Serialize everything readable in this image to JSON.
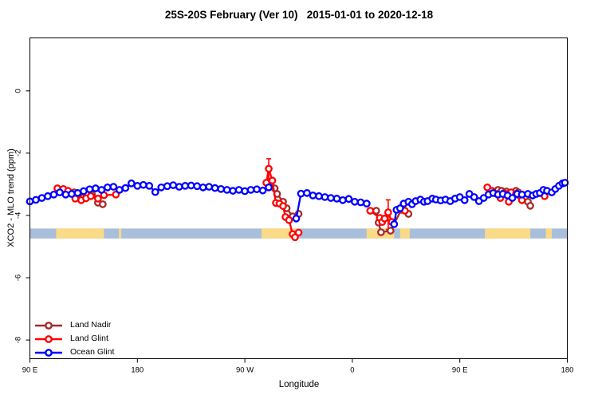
{
  "title": "25S-20S February (Ver 10)   2015-01-01 to 2020-12-18",
  "legend": {
    "items": [
      {
        "label": "Land Nadir",
        "color": "#a52a2a"
      },
      {
        "label": "Land Glint",
        "color": "#ff0000"
      },
      {
        "label": "Ocean Glint",
        "color": "#0000ff"
      }
    ]
  },
  "chart_data": {
    "type": "line",
    "title": "25S-20S February (Ver 10)   2015-01-01 to 2020-12-18",
    "xlabel": "Longitude",
    "ylabel": "XCO2 - MLO trend (ppm)",
    "xlim": [
      90,
      540
    ],
    "ylim": [
      -8.6,
      1.7
    ],
    "grid": false,
    "legend_position": "bottom-left",
    "x_axis_note": "longitude wraps eastward: 90E -> 180 -> 90W -> 0 -> 90E -> 180",
    "x_ticks": [
      {
        "pos": 90,
        "label": "90 E"
      },
      {
        "pos": 180,
        "label": "180"
      },
      {
        "pos": 270,
        "label": "90 W"
      },
      {
        "pos": 360,
        "label": "0"
      },
      {
        "pos": 450,
        "label": "90 E"
      },
      {
        "pos": 540,
        "label": "180"
      }
    ],
    "y_ticks": [
      {
        "pos": 0,
        "label": "0"
      },
      {
        "pos": -2,
        "label": "-2"
      },
      {
        "pos": -4,
        "label": "-4"
      },
      {
        "pos": -6,
        "label": "-6"
      },
      {
        "pos": -8,
        "label": "-8"
      }
    ],
    "map_band": {
      "y_range": [
        -4.74,
        -4.42
      ],
      "ocean_color": "#a9bedb",
      "land_color": "#fada87",
      "land_segments_lon": [
        [
          112,
          152
        ],
        [
          164.5,
          166.5
        ],
        [
          284,
          313
        ],
        [
          372,
          395
        ],
        [
          400,
          408
        ],
        [
          471,
          509
        ],
        [
          522,
          527
        ]
      ]
    },
    "marker": {
      "shape": "open-circle",
      "radius": 3.7,
      "fill": "#ffffff"
    },
    "series": [
      {
        "name": "Land Nadir",
        "color": "#a52a2a",
        "points": [
          [
            127,
            -3.26
          ],
          [
            131,
            -3.31
          ],
          [
            137,
            -3.31
          ],
          [
            142,
            -3.33
          ],
          [
            147,
            -3.59
          ],
          [
            151,
            -3.64
          ],
          [
            292,
            -2.92
          ],
          [
            295,
            -3.13
          ],
          [
            297,
            -3.31
          ],
          [
            302,
            -3.56
          ],
          [
            305,
            -3.77
          ],
          [
            310,
            -4.03
          ],
          [
            315,
            -3.95
          ],
          [
            380,
            -3.85
          ],
          [
            382,
            -4.23
          ],
          [
            384,
            -4.54
          ],
          [
            392,
            -4.49
          ],
          [
            401,
            -3.82
          ],
          [
            407,
            -3.95
          ],
          [
            482,
            -3.18
          ],
          [
            485,
            -3.21
          ],
          [
            489,
            -3.23
          ],
          [
            492,
            -3.28
          ],
          [
            497,
            -3.21
          ],
          [
            499,
            -3.26
          ],
          [
            502,
            -3.33
          ],
          [
            505,
            -3.41
          ],
          [
            507,
            -3.56
          ],
          [
            509,
            -3.69
          ]
        ]
      },
      {
        "name": "Land Glint",
        "color": "#ff0000",
        "points": [
          [
            113,
            -3.13
          ],
          [
            118,
            -3.15
          ],
          [
            122,
            -3.21
          ],
          [
            128,
            -3.46
          ],
          [
            133,
            -3.51
          ],
          [
            137,
            -3.45
          ],
          [
            141,
            -3.38
          ],
          [
            147,
            -3.46
          ],
          [
            152,
            -3.35
          ],
          [
            162,
            -3.33
          ],
          [
            288,
            -2.95
          ],
          [
            290,
            -2.5
          ],
          [
            293,
            -2.88
          ],
          [
            296,
            -3.6
          ],
          [
            299,
            -3.62
          ],
          [
            302,
            -3.7
          ],
          [
            304,
            -4.05
          ],
          [
            307,
            -4.15
          ],
          [
            310,
            -4.6
          ],
          [
            312,
            -4.7
          ],
          [
            315,
            -4.55
          ],
          [
            375,
            -3.85
          ],
          [
            383,
            -4.08
          ],
          [
            385,
            -4.21
          ],
          [
            387,
            -4.1
          ],
          [
            390,
            -3.9
          ],
          [
            393,
            -4.21
          ],
          [
            404,
            -3.85
          ],
          [
            473,
            -3.1
          ],
          [
            477,
            -3.21
          ],
          [
            481,
            -3.31
          ],
          [
            484,
            -3.44
          ],
          [
            487,
            -3.28
          ],
          [
            491,
            -3.56
          ],
          [
            493,
            -3.26
          ],
          [
            497,
            -3.31
          ],
          [
            500,
            -3.36
          ],
          [
            502,
            -3.51
          ],
          [
            521,
            -3.38
          ]
        ]
      },
      {
        "name": "Ocean Glint",
        "color": "#0000ff",
        "points": [
          [
            90,
            -3.55
          ],
          [
            95,
            -3.5
          ],
          [
            100,
            -3.44
          ],
          [
            105,
            -3.38
          ],
          [
            110,
            -3.33
          ],
          [
            115,
            -3.26
          ],
          [
            120,
            -3.33
          ],
          [
            125,
            -3.31
          ],
          [
            130,
            -3.28
          ],
          [
            135,
            -3.22
          ],
          [
            140,
            -3.16
          ],
          [
            145,
            -3.13
          ],
          [
            150,
            -3.18
          ],
          [
            155,
            -3.1
          ],
          [
            160,
            -3.08
          ],
          [
            165,
            -3.18
          ],
          [
            170,
            -3.12
          ],
          [
            175,
            -2.97
          ],
          [
            180,
            -3.05
          ],
          [
            185,
            -3.02
          ],
          [
            190,
            -3.05
          ],
          [
            195,
            -3.25
          ],
          [
            200,
            -3.1
          ],
          [
            205,
            -3.06
          ],
          [
            210,
            -3.03
          ],
          [
            215,
            -3.08
          ],
          [
            220,
            -3.05
          ],
          [
            225,
            -3.04
          ],
          [
            230,
            -3.06
          ],
          [
            235,
            -3.1
          ],
          [
            240,
            -3.08
          ],
          [
            245,
            -3.12
          ],
          [
            250,
            -3.15
          ],
          [
            255,
            -3.18
          ],
          [
            260,
            -3.21
          ],
          [
            265,
            -3.18
          ],
          [
            270,
            -3.22
          ],
          [
            275,
            -3.18
          ],
          [
            280,
            -3.16
          ],
          [
            285,
            -3.2
          ],
          [
            290,
            -3.1
          ],
          [
            313,
            -4.1
          ],
          [
            317,
            -3.3
          ],
          [
            322,
            -3.28
          ],
          [
            327,
            -3.36
          ],
          [
            332,
            -3.38
          ],
          [
            337,
            -3.41
          ],
          [
            342,
            -3.44
          ],
          [
            347,
            -3.46
          ],
          [
            352,
            -3.51
          ],
          [
            357,
            -3.47
          ],
          [
            362,
            -3.56
          ],
          [
            367,
            -3.58
          ],
          [
            372,
            -3.62
          ],
          [
            395,
            -4.28
          ],
          [
            397,
            -3.82
          ],
          [
            400,
            -3.77
          ],
          [
            403,
            -3.62
          ],
          [
            407,
            -3.56
          ],
          [
            410,
            -3.64
          ],
          [
            413,
            -3.54
          ],
          [
            417,
            -3.49
          ],
          [
            420,
            -3.56
          ],
          [
            423,
            -3.54
          ],
          [
            427,
            -3.46
          ],
          [
            430,
            -3.49
          ],
          [
            434,
            -3.52
          ],
          [
            438,
            -3.49
          ],
          [
            442,
            -3.54
          ],
          [
            446,
            -3.46
          ],
          [
            450,
            -3.41
          ],
          [
            454,
            -3.51
          ],
          [
            458,
            -3.31
          ],
          [
            462,
            -3.41
          ],
          [
            466,
            -3.54
          ],
          [
            470,
            -3.44
          ],
          [
            474,
            -3.33
          ],
          [
            478,
            -3.28
          ],
          [
            482,
            -3.33
          ],
          [
            486,
            -3.31
          ],
          [
            490,
            -3.36
          ],
          [
            494,
            -3.44
          ],
          [
            498,
            -3.31
          ],
          [
            502,
            -3.33
          ],
          [
            507,
            -3.31
          ],
          [
            511,
            -3.36
          ],
          [
            514,
            -3.31
          ],
          [
            517,
            -3.28
          ],
          [
            520,
            -3.18
          ],
          [
            523,
            -3.21
          ],
          [
            527,
            -3.26
          ],
          [
            530,
            -3.15
          ],
          [
            533,
            -3.05
          ],
          [
            536,
            -2.97
          ],
          [
            538,
            -2.95
          ]
        ]
      }
    ],
    "error_bars": [
      {
        "series": "Land Glint",
        "x": 290,
        "y_from": -2.18,
        "y_to": -2.82
      },
      {
        "series": "Land Glint",
        "x": 390,
        "y_from": -3.5,
        "y_to": -4.45
      }
    ]
  }
}
